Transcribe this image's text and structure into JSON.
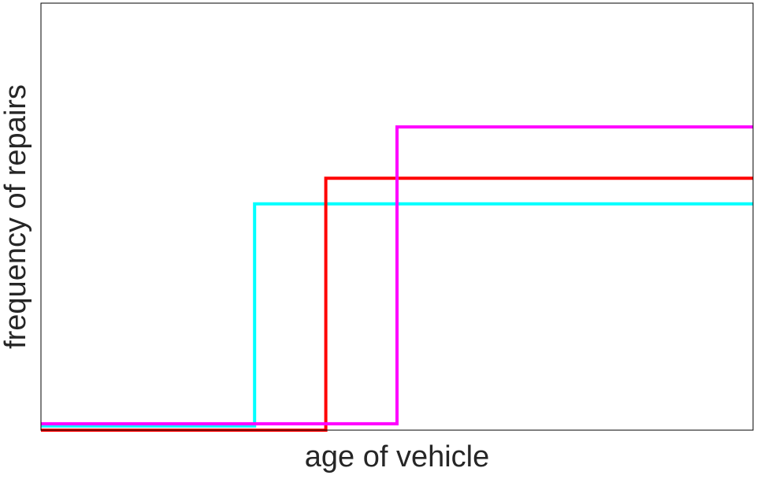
{
  "chart_data": {
    "type": "line",
    "step": "post",
    "x_label": "age of vehicle",
    "y_label": "frequency of repairs",
    "xlim": [
      0,
      10
    ],
    "ylim": [
      0,
      10
    ],
    "series": [
      {
        "color": "#00ffff",
        "x": [
          0,
          3,
          10
        ],
        "values": [
          0.1,
          5.3,
          5.3
        ]
      },
      {
        "color": "#ff0000",
        "x": [
          0,
          4,
          10
        ],
        "values": [
          0,
          5.9,
          5.9
        ]
      },
      {
        "color": "#ff00ff",
        "x": [
          0,
          5,
          10
        ],
        "values": [
          0.15,
          7.1,
          7.1
        ]
      }
    ]
  }
}
